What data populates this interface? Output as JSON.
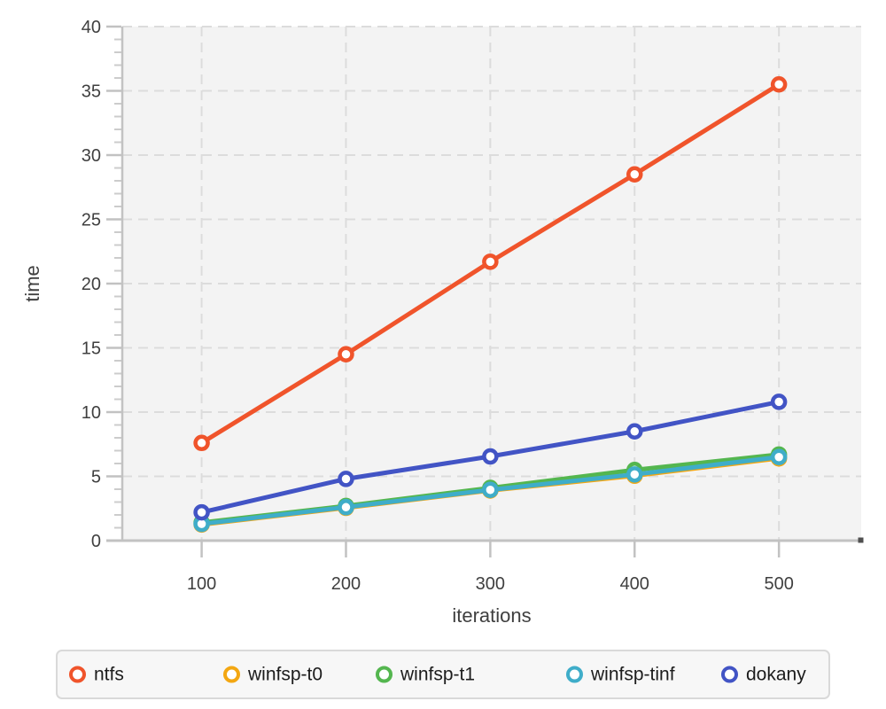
{
  "chart_data": {
    "type": "line",
    "title": "",
    "xlabel": "iterations",
    "ylabel": "time",
    "x": [
      100,
      200,
      300,
      400,
      500
    ],
    "series": [
      {
        "name": "ntfs",
        "color": "#F0542B",
        "values": [
          7.6,
          14.5,
          21.7,
          28.5,
          35.5
        ]
      },
      {
        "name": "winfsp-t0",
        "color": "#F3A712",
        "values": [
          1.25,
          2.55,
          3.9,
          5.05,
          6.4
        ]
      },
      {
        "name": "winfsp-t1",
        "color": "#54B64F",
        "values": [
          1.4,
          2.7,
          4.1,
          5.5,
          6.7
        ]
      },
      {
        "name": "winfsp-tinf",
        "color": "#3FADC9",
        "values": [
          1.3,
          2.6,
          3.95,
          5.15,
          6.5
        ]
      },
      {
        "name": "dokany",
        "color": "#4254C5",
        "values": [
          2.2,
          4.8,
          6.55,
          8.5,
          10.8
        ]
      }
    ],
    "xlim": [
      45,
      557
    ],
    "ylim": [
      0,
      40
    ],
    "xticks": [
      100,
      200,
      300,
      400,
      500
    ],
    "yticks": [
      0,
      5,
      10,
      15,
      20,
      25,
      30,
      35,
      40
    ],
    "y_minor_step": 1,
    "grid": true,
    "grid_style": "dashed",
    "legend_position": "bottom",
    "legend_labels": [
      "ntfs",
      "winfsp-t0",
      "winfsp-t1",
      "winfsp-tinf",
      "dokany"
    ],
    "colors": {
      "panel_background": "#f3f3f3",
      "grid": "#dcdcdc",
      "axis": "#c2c2c2",
      "tick_text": "#404040",
      "axis_title_text": "#333333",
      "legend_background": "#f7f7f7",
      "legend_border": "#d9d9d9",
      "legend_text": "#1c1c1c",
      "marker_fill": "#ffffff"
    }
  }
}
